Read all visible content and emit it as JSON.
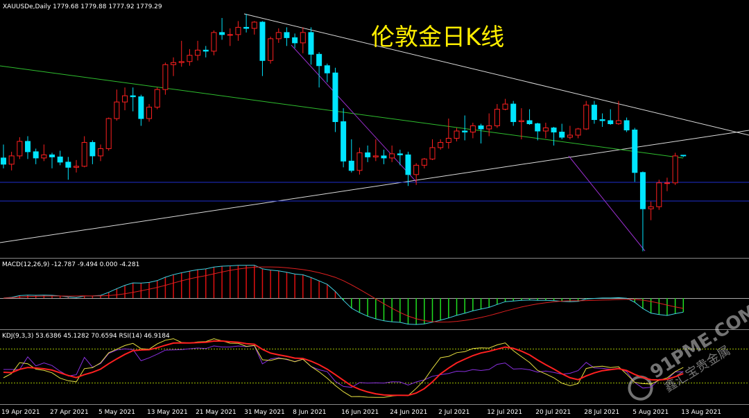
{
  "header": "XAUUSDe,Daily  1779.68 1779.88 1777.92 1779.29",
  "chart_data": {
    "type": "candlestick",
    "title": "伦敦金日K线",
    "ohlc": [
      [
        1777,
        1790,
        1767,
        1771
      ],
      [
        1771,
        1783,
        1765,
        1779
      ],
      [
        1779,
        1797,
        1776,
        1793
      ],
      [
        1793,
        1798,
        1776,
        1783
      ],
      [
        1783,
        1786,
        1771,
        1777
      ],
      [
        1777,
        1790,
        1774,
        1780
      ],
      [
        1780,
        1782,
        1767,
        1778
      ],
      [
        1778,
        1784,
        1770,
        1773
      ],
      [
        1773,
        1778,
        1756,
        1768
      ],
      [
        1768,
        1775,
        1763,
        1769
      ],
      [
        1769,
        1798,
        1768,
        1792
      ],
      [
        1792,
        1794,
        1771,
        1779
      ],
      [
        1779,
        1790,
        1774,
        1786
      ],
      [
        1786,
        1816,
        1784,
        1815
      ],
      [
        1815,
        1843,
        1813,
        1831
      ],
      [
        1831,
        1845,
        1823,
        1837
      ],
      [
        1837,
        1845,
        1822,
        1836
      ],
      [
        1836,
        1838,
        1808,
        1815
      ],
      [
        1815,
        1829,
        1812,
        1826
      ],
      [
        1826,
        1845,
        1824,
        1843
      ],
      [
        1843,
        1869,
        1838,
        1867
      ],
      [
        1867,
        1874,
        1856,
        1869
      ],
      [
        1869,
        1890,
        1865,
        1870
      ],
      [
        1870,
        1882,
        1866,
        1876
      ],
      [
        1876,
        1890,
        1871,
        1881
      ],
      [
        1881,
        1885,
        1874,
        1880
      ],
      [
        1880,
        1900,
        1876,
        1898
      ],
      [
        1898,
        1912,
        1891,
        1896
      ],
      [
        1896,
        1902,
        1885,
        1896
      ],
      [
        1896,
        1909,
        1890,
        1903
      ],
      [
        1903,
        1916,
        1898,
        1902
      ],
      [
        1902,
        1909,
        1896,
        1908
      ],
      [
        1908,
        1909,
        1856,
        1871
      ],
      [
        1871,
        1894,
        1868,
        1892
      ],
      [
        1892,
        1902,
        1888,
        1898
      ],
      [
        1898,
        1903,
        1885,
        1893
      ],
      [
        1893,
        1897,
        1883,
        1888
      ],
      [
        1888,
        1903,
        1878,
        1898
      ],
      [
        1898,
        1903,
        1867,
        1877
      ],
      [
        1877,
        1879,
        1845,
        1866
      ],
      [
        1866,
        1868,
        1850,
        1859
      ],
      [
        1859,
        1864,
        1802,
        1812
      ],
      [
        1812,
        1825,
        1768,
        1774
      ],
      [
        1774,
        1795,
        1763,
        1765
      ],
      [
        1765,
        1787,
        1761,
        1782
      ],
      [
        1782,
        1789,
        1773,
        1778
      ],
      [
        1778,
        1795,
        1774,
        1779
      ],
      [
        1779,
        1785,
        1771,
        1777
      ],
      [
        1777,
        1789,
        1773,
        1781
      ],
      [
        1781,
        1785,
        1770,
        1780
      ],
      [
        1780,
        1783,
        1750,
        1761
      ],
      [
        1761,
        1772,
        1751,
        1770
      ],
      [
        1770,
        1777,
        1767,
        1776
      ],
      [
        1776,
        1795,
        1775,
        1787
      ],
      [
        1787,
        1795,
        1785,
        1792
      ],
      [
        1792,
        1815,
        1786,
        1796
      ],
      [
        1796,
        1806,
        1793,
        1803
      ],
      [
        1803,
        1818,
        1794,
        1802
      ],
      [
        1802,
        1811,
        1796,
        1808
      ],
      [
        1808,
        1810,
        1791,
        1805
      ],
      [
        1805,
        1820,
        1798,
        1808
      ],
      [
        1808,
        1829,
        1806,
        1824
      ],
      [
        1824,
        1834,
        1823,
        1829
      ],
      [
        1829,
        1832,
        1808,
        1812
      ],
      [
        1812,
        1825,
        1795,
        1813
      ],
      [
        1813,
        1824,
        1809,
        1810
      ],
      [
        1810,
        1811,
        1794,
        1803
      ],
      [
        1803,
        1811,
        1796,
        1806
      ],
      [
        1806,
        1807,
        1789,
        1802
      ],
      [
        1802,
        1810,
        1795,
        1797
      ],
      [
        1797,
        1808,
        1795,
        1799
      ],
      [
        1799,
        1806,
        1796,
        1805
      ],
      [
        1805,
        1832,
        1804,
        1828
      ],
      [
        1828,
        1832,
        1810,
        1814
      ],
      [
        1814,
        1820,
        1807,
        1813
      ],
      [
        1813,
        1824,
        1809,
        1810
      ],
      [
        1810,
        1832,
        1809,
        1813
      ],
      [
        1813,
        1816,
        1802,
        1804
      ],
      [
        1804,
        1806,
        1754,
        1763
      ],
      [
        1763,
        1764,
        1687,
        1728
      ],
      [
        1728,
        1735,
        1717,
        1730
      ],
      [
        1730,
        1756,
        1727,
        1753
      ],
      [
        1753,
        1758,
        1745,
        1753
      ],
      [
        1753,
        1782,
        1751,
        1779
      ],
      [
        1779.68,
        1779.88,
        1777.92,
        1779.29
      ]
    ],
    "ylim": [
      1682,
      1926
    ],
    "up_color": "#ff2020",
    "down_color": "#00e5ff",
    "x_labels": [
      "19 Apr 2021",
      "27 Apr 2021",
      "5 May 2021",
      "13 May 2021",
      "21 May 2021",
      "31 May 2021",
      "8 Jun 2021",
      "16 Jun 2021",
      "24 Jun 2021",
      "2 Jul 2021",
      "12 Jul 2021",
      "20 Jul 2021",
      "28 Jul 2021",
      "5 Aug 2021",
      "13 Aug 2021"
    ],
    "macd_label": "MACD(12,26,9) -12.787 -9.494 0.000 -4.281",
    "kdj_label": "KDJ(9,3,3) 53.6386 45.1282 70.6594  RSI(14) 46.9184"
  },
  "watermark": {
    "site": "91PME.COM",
    "brand": "鑫汇宝贵金属"
  }
}
